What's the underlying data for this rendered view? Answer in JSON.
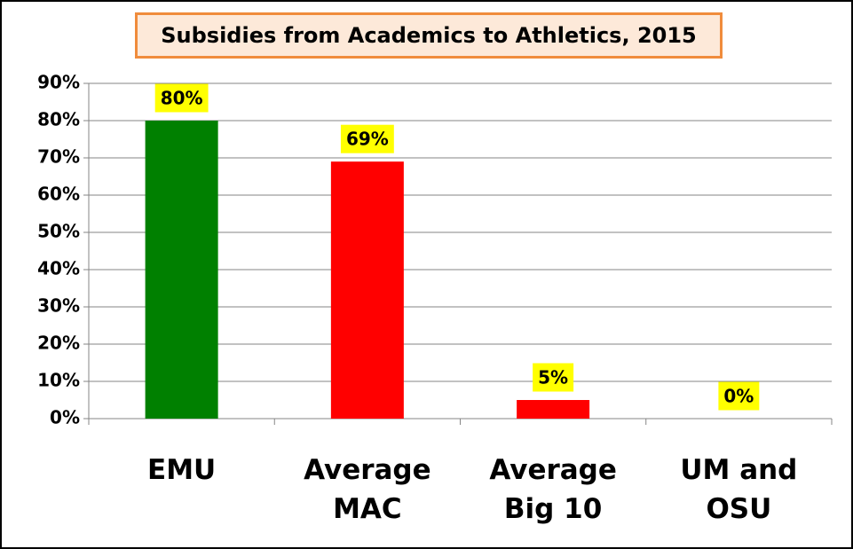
{
  "chart_data": {
    "type": "bar",
    "title": "Subsidies from Academics to Athletics, 2015",
    "categories": [
      "EMU",
      "Average MAC",
      "Average Big 10",
      "UM and OSU"
    ],
    "values": [
      80,
      69,
      5,
      0
    ],
    "value_labels": [
      "80%",
      "69%",
      "5%",
      "0%"
    ],
    "colors": [
      "#008000",
      "#ff0000",
      "#ff0000",
      "#ff0000"
    ],
    "ylim": [
      0,
      90
    ],
    "yticks": [
      {
        "value": 0,
        "label": "0%"
      },
      {
        "value": 10,
        "label": "10%"
      },
      {
        "value": 20,
        "label": "20%"
      },
      {
        "value": 30,
        "label": "30%"
      },
      {
        "value": 40,
        "label": "40%"
      },
      {
        "value": 50,
        "label": "50%"
      },
      {
        "value": 60,
        "label": "60%"
      },
      {
        "value": 70,
        "label": "70%"
      },
      {
        "value": 80,
        "label": "80%"
      },
      {
        "value": 90,
        "label": "90%"
      }
    ],
    "grid": true
  }
}
